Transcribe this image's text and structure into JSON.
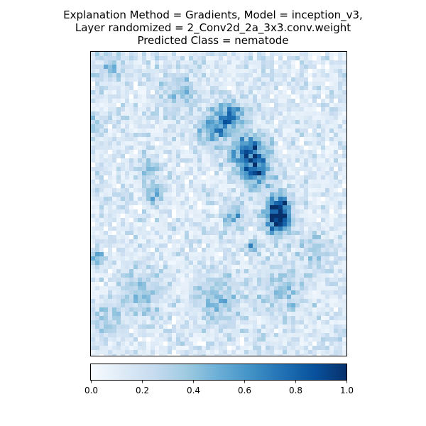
{
  "chart_data": {
    "type": "heatmap",
    "title_lines": [
      "Explanation Method = Gradients, Model = inception_v3,",
      "Layer randomized = 2_Conv2d_2a_3x3.conv.weight",
      "Predicted Class = nematode"
    ],
    "colormap": "Blues",
    "colormap_stops": [
      "#f7fbff",
      "#deebf7",
      "#c6dbef",
      "#9ecae1",
      "#6baed6",
      "#4292c6",
      "#2171b5",
      "#08519c",
      "#08306b"
    ],
    "colorbar": {
      "range": [
        0.0,
        1.0
      ],
      "ticks": [
        0.0,
        0.2,
        0.4,
        0.6,
        0.8,
        1.0
      ],
      "tick_labels": [
        "0.0",
        "0.2",
        "0.4",
        "0.6",
        "0.8",
        "1.0"
      ],
      "orientation": "horizontal",
      "placement": "bottom"
    },
    "axes": {
      "show_ticks": false,
      "grid": false
    },
    "hotspots": [
      {
        "u": 0.73,
        "v": 0.55,
        "intensity": 0.95,
        "spread": 0.035
      },
      {
        "u": 0.74,
        "v": 0.5,
        "intensity": 0.8,
        "spread": 0.03
      },
      {
        "u": 0.62,
        "v": 0.33,
        "intensity": 0.75,
        "spread": 0.05
      },
      {
        "u": 0.54,
        "v": 0.21,
        "intensity": 0.6,
        "spread": 0.04
      },
      {
        "u": 0.47,
        "v": 0.26,
        "intensity": 0.45,
        "spread": 0.04
      },
      {
        "u": 0.65,
        "v": 0.4,
        "intensity": 0.55,
        "spread": 0.04
      },
      {
        "u": 0.25,
        "v": 0.46,
        "intensity": 0.45,
        "spread": 0.025
      },
      {
        "u": 0.02,
        "v": 0.67,
        "intensity": 0.6,
        "spread": 0.02
      },
      {
        "u": 0.01,
        "v": 0.24,
        "intensity": 0.4,
        "spread": 0.02
      },
      {
        "u": 0.63,
        "v": 0.64,
        "intensity": 0.55,
        "spread": 0.015
      },
      {
        "u": 0.56,
        "v": 0.53,
        "intensity": 0.4,
        "spread": 0.03
      },
      {
        "u": 0.23,
        "v": 0.38,
        "intensity": 0.35,
        "spread": 0.025
      },
      {
        "u": 0.5,
        "v": 0.8,
        "intensity": 0.3,
        "spread": 0.06
      },
      {
        "u": 0.2,
        "v": 0.78,
        "intensity": 0.25,
        "spread": 0.06
      },
      {
        "u": 0.75,
        "v": 0.78,
        "intensity": 0.25,
        "spread": 0.06
      },
      {
        "u": 0.35,
        "v": 0.12,
        "intensity": 0.25,
        "spread": 0.05
      },
      {
        "u": 0.08,
        "v": 0.05,
        "intensity": 0.25,
        "spread": 0.04
      },
      {
        "u": 0.05,
        "v": 0.88,
        "intensity": 0.25,
        "spread": 0.05
      },
      {
        "u": 0.88,
        "v": 0.65,
        "intensity": 0.25,
        "spread": 0.04
      }
    ],
    "background_level": 0.12,
    "noise_level": 0.25
  }
}
